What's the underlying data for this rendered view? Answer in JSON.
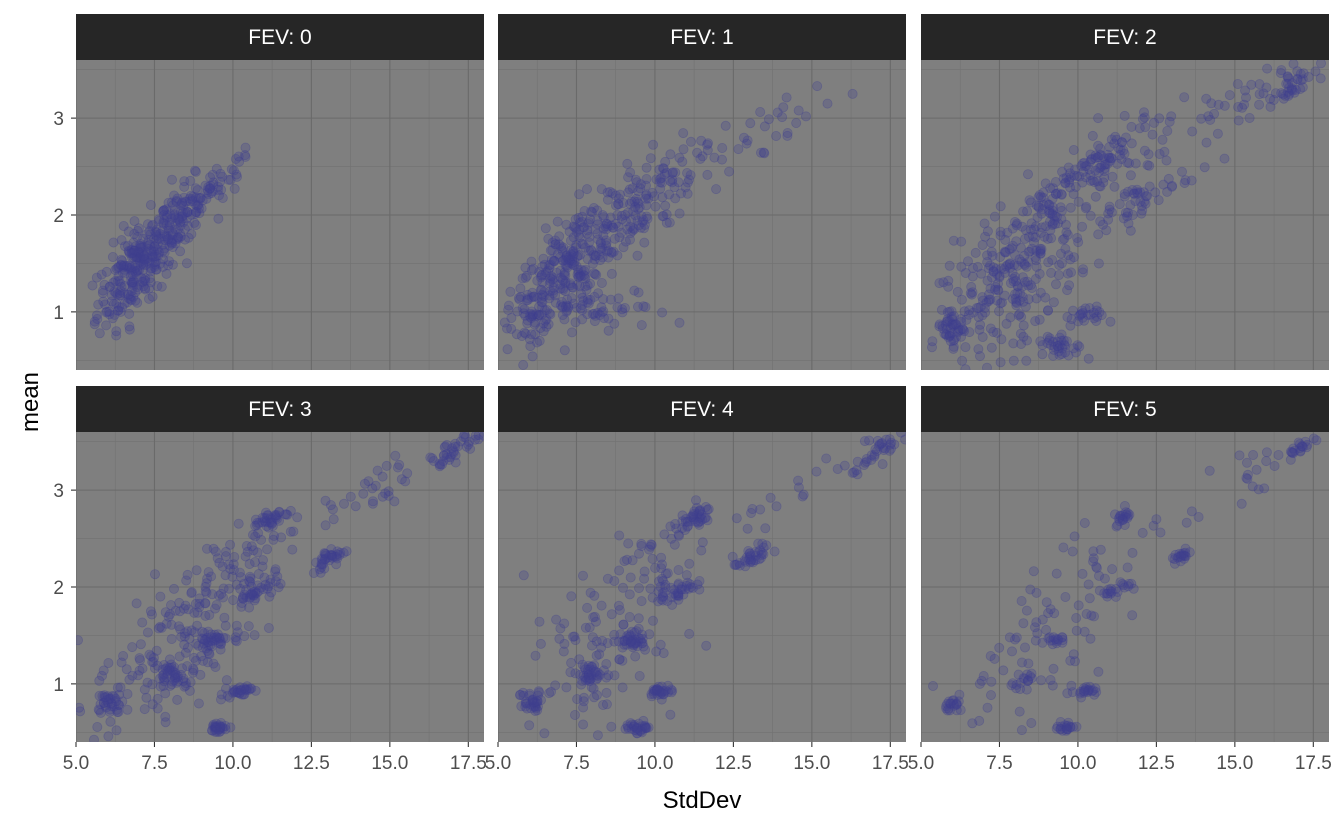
{
  "chart_data": {
    "type": "scatter",
    "xlabel": "StdDev",
    "ylabel": "mean",
    "xlim": [
      5.0,
      18.0
    ],
    "ylim": [
      0.4,
      3.6
    ],
    "x_ticks": [
      5.0,
      7.5,
      10.0,
      12.5,
      15.0,
      17.5
    ],
    "x_tick_labels": [
      "5.0",
      "7.5",
      "10.0",
      "12.5",
      "15.0",
      "17.5"
    ],
    "y_ticks": [
      1,
      2,
      3
    ],
    "y_tick_labels": [
      "1",
      "2",
      "3"
    ],
    "grid": true,
    "point_color": "#3f3f8f",
    "panel_background": "#7f7f7f",
    "strip_background": "#262626",
    "panels": [
      {
        "label": "FEV: 0",
        "clusters": [
          {
            "cx": 6.9,
            "cy": 1.45,
            "sx": 0.6,
            "sy": 0.22,
            "n": 240,
            "slope": 0.3
          },
          {
            "cx": 8.3,
            "cy": 1.95,
            "sx": 0.55,
            "sy": 0.15,
            "n": 130,
            "slope": 0.32
          },
          {
            "cx": 9.6,
            "cy": 2.3,
            "sx": 0.5,
            "sy": 0.1,
            "n": 30,
            "slope": 0.3
          }
        ],
        "points": [
          [
            10.4,
            2.6
          ],
          [
            10.2,
            2.55
          ],
          [
            5.6,
            0.9
          ],
          [
            6.7,
            0.85
          ]
        ]
      },
      {
        "label": "FEV: 1",
        "clusters": [
          {
            "cx": 7.3,
            "cy": 1.45,
            "sx": 0.9,
            "sy": 0.28,
            "n": 260,
            "slope": 0.28
          },
          {
            "cx": 9.3,
            "cy": 2.05,
            "sx": 1.0,
            "sy": 0.22,
            "n": 130,
            "slope": 0.25
          },
          {
            "cx": 12.5,
            "cy": 2.7,
            "sx": 1.2,
            "sy": 0.15,
            "n": 40,
            "slope": 0.18
          },
          {
            "cx": 6.0,
            "cy": 1.0,
            "sx": 0.3,
            "sy": 0.15,
            "n": 40,
            "slope": 0
          },
          {
            "cx": 8.5,
            "cy": 1.0,
            "sx": 1.0,
            "sy": 0.12,
            "n": 40,
            "slope": 0
          }
        ],
        "points": [
          [
            15.5,
            3.15
          ],
          [
            16.3,
            3.25
          ],
          [
            14.5,
            2.95
          ],
          [
            9.7,
            1.05
          ]
        ]
      },
      {
        "label": "FEV: 2",
        "clusters": [
          {
            "cx": 7.8,
            "cy": 1.3,
            "sx": 1.1,
            "sy": 0.35,
            "n": 230,
            "slope": 0.2
          },
          {
            "cx": 9.5,
            "cy": 2.1,
            "sx": 1.0,
            "sy": 0.25,
            "n": 110,
            "slope": 0.22
          },
          {
            "cx": 10.8,
            "cy": 2.55,
            "sx": 0.8,
            "sy": 0.12,
            "n": 60,
            "slope": 0.18
          },
          {
            "cx": 12.0,
            "cy": 2.15,
            "sx": 0.9,
            "sy": 0.12,
            "n": 50,
            "slope": 0.18
          },
          {
            "cx": 14.0,
            "cy": 3.0,
            "sx": 1.3,
            "sy": 0.12,
            "n": 40,
            "slope": 0.16
          },
          {
            "cx": 16.8,
            "cy": 3.35,
            "sx": 0.5,
            "sy": 0.07,
            "n": 40,
            "slope": 0.2
          },
          {
            "cx": 6.0,
            "cy": 0.85,
            "sx": 0.25,
            "sy": 0.1,
            "n": 45,
            "slope": 0
          },
          {
            "cx": 9.2,
            "cy": 0.65,
            "sx": 0.4,
            "sy": 0.07,
            "n": 35,
            "slope": -0.1
          },
          {
            "cx": 10.2,
            "cy": 0.95,
            "sx": 0.3,
            "sy": 0.05,
            "n": 25,
            "slope": 0
          }
        ],
        "points": [
          [
            13.0,
            2.3
          ],
          [
            13.4,
            2.33
          ],
          [
            11.4,
            2.75
          ],
          [
            9.7,
            0.55
          ]
        ]
      },
      {
        "label": "FEV: 3",
        "clusters": [
          {
            "cx": 8.0,
            "cy": 1.25,
            "sx": 1.2,
            "sy": 0.35,
            "n": 150,
            "slope": 0.15
          },
          {
            "cx": 9.8,
            "cy": 2.1,
            "sx": 1.2,
            "sy": 0.25,
            "n": 80,
            "slope": 0.2
          },
          {
            "cx": 11.2,
            "cy": 2.7,
            "sx": 0.3,
            "sy": 0.05,
            "n": 40,
            "slope": 0.15
          },
          {
            "cx": 13.1,
            "cy": 2.3,
            "sx": 0.3,
            "sy": 0.05,
            "n": 35,
            "slope": 0.15
          },
          {
            "cx": 10.7,
            "cy": 1.95,
            "sx": 0.3,
            "sy": 0.05,
            "n": 35,
            "slope": 0.15
          },
          {
            "cx": 9.3,
            "cy": 1.45,
            "sx": 0.2,
            "sy": 0.04,
            "n": 30,
            "slope": 0
          },
          {
            "cx": 9.5,
            "cy": 0.55,
            "sx": 0.2,
            "sy": 0.03,
            "n": 30,
            "slope": 0
          },
          {
            "cx": 10.2,
            "cy": 0.93,
            "sx": 0.2,
            "sy": 0.03,
            "n": 30,
            "slope": 0
          },
          {
            "cx": 8.0,
            "cy": 1.1,
            "sx": 0.2,
            "sy": 0.04,
            "n": 30,
            "slope": 0
          },
          {
            "cx": 6.1,
            "cy": 0.8,
            "sx": 0.2,
            "sy": 0.06,
            "n": 30,
            "slope": 0
          },
          {
            "cx": 14.5,
            "cy": 3.0,
            "sx": 1.3,
            "sy": 0.12,
            "n": 35,
            "slope": 0.16
          },
          {
            "cx": 17.0,
            "cy": 3.4,
            "sx": 0.4,
            "sy": 0.06,
            "n": 35,
            "slope": 0.2
          }
        ],
        "points": [
          [
            11.7,
            2.75
          ],
          [
            13.4,
            2.33
          ],
          [
            17.5,
            3.47
          ]
        ]
      },
      {
        "label": "FEV: 4",
        "clusters": [
          {
            "cx": 8.0,
            "cy": 1.2,
            "sx": 1.1,
            "sy": 0.35,
            "n": 100,
            "slope": 0.15
          },
          {
            "cx": 9.6,
            "cy": 2.15,
            "sx": 1.1,
            "sy": 0.25,
            "n": 60,
            "slope": 0.2
          },
          {
            "cx": 11.2,
            "cy": 2.7,
            "sx": 0.3,
            "sy": 0.05,
            "n": 40,
            "slope": 0.15
          },
          {
            "cx": 13.1,
            "cy": 2.3,
            "sx": 0.3,
            "sy": 0.05,
            "n": 35,
            "slope": 0.15
          },
          {
            "cx": 10.7,
            "cy": 1.95,
            "sx": 0.3,
            "sy": 0.05,
            "n": 35,
            "slope": 0.15
          },
          {
            "cx": 9.3,
            "cy": 1.45,
            "sx": 0.2,
            "sy": 0.04,
            "n": 30,
            "slope": 0
          },
          {
            "cx": 9.5,
            "cy": 0.55,
            "sx": 0.2,
            "sy": 0.03,
            "n": 30,
            "slope": 0
          },
          {
            "cx": 10.2,
            "cy": 0.93,
            "sx": 0.2,
            "sy": 0.03,
            "n": 30,
            "slope": 0
          },
          {
            "cx": 8.0,
            "cy": 1.1,
            "sx": 0.2,
            "sy": 0.04,
            "n": 30,
            "slope": 0
          },
          {
            "cx": 6.1,
            "cy": 0.8,
            "sx": 0.2,
            "sy": 0.06,
            "n": 30,
            "slope": 0
          },
          {
            "cx": 14.5,
            "cy": 3.0,
            "sx": 1.3,
            "sy": 0.12,
            "n": 20,
            "slope": 0.16
          },
          {
            "cx": 17.0,
            "cy": 3.4,
            "sx": 0.4,
            "sy": 0.06,
            "n": 30,
            "slope": 0.2
          }
        ],
        "points": [
          [
            13.4,
            2.33
          ],
          [
            17.5,
            3.47
          ],
          [
            9.8,
            0.55
          ]
        ]
      },
      {
        "label": "FEV: 5",
        "clusters": [
          {
            "cx": 8.5,
            "cy": 1.25,
            "sx": 1.3,
            "sy": 0.35,
            "n": 55,
            "slope": 0.15
          },
          {
            "cx": 10.5,
            "cy": 2.2,
            "sx": 1.3,
            "sy": 0.25,
            "n": 35,
            "slope": 0.2
          },
          {
            "cx": 11.4,
            "cy": 2.72,
            "sx": 0.15,
            "sy": 0.03,
            "n": 20,
            "slope": 0.15
          },
          {
            "cx": 13.3,
            "cy": 2.32,
            "sx": 0.15,
            "sy": 0.03,
            "n": 20,
            "slope": 0.15
          },
          {
            "cx": 11.2,
            "cy": 1.95,
            "sx": 0.25,
            "sy": 0.04,
            "n": 20,
            "slope": 0.15
          },
          {
            "cx": 9.3,
            "cy": 1.45,
            "sx": 0.15,
            "sy": 0.03,
            "n": 15,
            "slope": 0
          },
          {
            "cx": 9.6,
            "cy": 0.55,
            "sx": 0.15,
            "sy": 0.03,
            "n": 20,
            "slope": 0
          },
          {
            "cx": 10.3,
            "cy": 0.93,
            "sx": 0.15,
            "sy": 0.03,
            "n": 18,
            "slope": 0
          },
          {
            "cx": 8.3,
            "cy": 1.05,
            "sx": 0.2,
            "sy": 0.04,
            "n": 15,
            "slope": 0
          },
          {
            "cx": 6.1,
            "cy": 0.78,
            "sx": 0.15,
            "sy": 0.04,
            "n": 20,
            "slope": 0
          },
          {
            "cx": 15.5,
            "cy": 3.1,
            "sx": 1.0,
            "sy": 0.12,
            "n": 15,
            "slope": 0.16
          },
          {
            "cx": 17.2,
            "cy": 3.45,
            "sx": 0.25,
            "sy": 0.03,
            "n": 20,
            "slope": 0.2
          }
        ],
        "points": [
          [
            14.2,
            3.2
          ],
          [
            16.0,
            3.3
          ],
          [
            12.5,
            2.7
          ]
        ]
      }
    ]
  }
}
